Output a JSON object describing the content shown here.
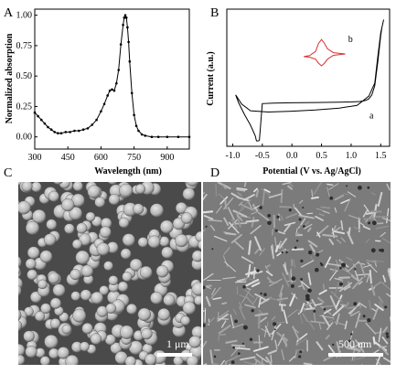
{
  "figure": {
    "panels": {
      "A": {
        "letter": "A"
      },
      "B": {
        "letter": "B"
      },
      "C": {
        "letter": "C",
        "scale_label": "1 μm"
      },
      "D": {
        "letter": "D",
        "scale_label": "500 nm"
      }
    }
  },
  "chart_data": [
    {
      "type": "line",
      "panel": "A",
      "xlabel": "Wavelength (nm)",
      "ylabel": "Normalized absorption",
      "xlim": [
        300,
        1000
      ],
      "ylim": [
        -0.1,
        1.05
      ],
      "xticks": [
        300,
        450,
        600,
        750,
        900
      ],
      "yticks": [
        "0.00",
        "0.25",
        "0.50",
        "0.75",
        "1.00"
      ],
      "series": [
        {
          "color": "#000000",
          "x": [
            300,
            315,
            330,
            345,
            360,
            375,
            390,
            405,
            420,
            440,
            460,
            480,
            500,
            520,
            540,
            560,
            580,
            600,
            615,
            630,
            640,
            650,
            660,
            670,
            680,
            690,
            700,
            705,
            710,
            715,
            720,
            725,
            730,
            740,
            750,
            760,
            770,
            785,
            800,
            830,
            860,
            900,
            950,
            1000
          ],
          "y": [
            0.2,
            0.17,
            0.14,
            0.11,
            0.08,
            0.06,
            0.04,
            0.03,
            0.03,
            0.04,
            0.04,
            0.05,
            0.05,
            0.06,
            0.07,
            0.1,
            0.14,
            0.21,
            0.27,
            0.34,
            0.38,
            0.39,
            0.38,
            0.44,
            0.55,
            0.76,
            0.92,
            0.98,
            1.0,
            0.98,
            0.9,
            0.78,
            0.62,
            0.36,
            0.18,
            0.09,
            0.05,
            0.02,
            0.01,
            0.0,
            0.0,
            0.0,
            0.0,
            0.0
          ]
        }
      ]
    },
    {
      "type": "line",
      "panel": "B",
      "xlabel": "Potential (V vs. Ag/AgCl)",
      "ylabel": "Current (a.u.)",
      "xlim": [
        -1.1,
        1.65
      ],
      "xticks": [
        "-1.0",
        "-0.5",
        "0.0",
        "0.5",
        "1.0",
        "1.5"
      ],
      "annotations": [
        "a",
        "b"
      ],
      "series": [
        {
          "name": "a",
          "color": "#000000",
          "x": [
            -0.55,
            -0.5,
            -0.3,
            0.0,
            0.4,
            0.8,
            1.0,
            1.15,
            1.25,
            1.3,
            1.35,
            1.4,
            1.45,
            1.5,
            1.52,
            1.55,
            1.5,
            1.45,
            1.4,
            1.3,
            1.1,
            0.8,
            0.4,
            0.0,
            -0.4,
            -0.7,
            -0.85,
            -0.95,
            -0.9,
            -0.8,
            -0.7,
            -0.62,
            -0.6,
            -0.58,
            -0.55
          ],
          "y": [
            -0.78,
            0.62,
            0.64,
            0.65,
            0.66,
            0.67,
            0.68,
            0.7,
            0.74,
            0.8,
            0.95,
            1.3,
            2.2,
            3.2,
            3.5,
            3.8,
            3.3,
            2.4,
            1.4,
            0.9,
            0.55,
            0.45,
            0.38,
            0.33,
            0.3,
            0.35,
            0.6,
            0.95,
            0.65,
            0.2,
            -0.2,
            -0.6,
            -0.79,
            -0.8,
            -0.78
          ]
        },
        {
          "name": "b",
          "color": "#d93030",
          "x": [
            0.2,
            0.3,
            0.4,
            0.45,
            0.5,
            0.55,
            0.6,
            0.7,
            0.9,
            0.7,
            0.6,
            0.55,
            0.5,
            0.45,
            0.4,
            0.3,
            0.2
          ],
          "y": [
            2.4,
            2.44,
            2.6,
            2.9,
            3.05,
            2.9,
            2.7,
            2.55,
            2.5,
            2.45,
            2.3,
            2.15,
            2.05,
            2.15,
            2.3,
            2.38,
            2.4
          ]
        }
      ]
    }
  ]
}
